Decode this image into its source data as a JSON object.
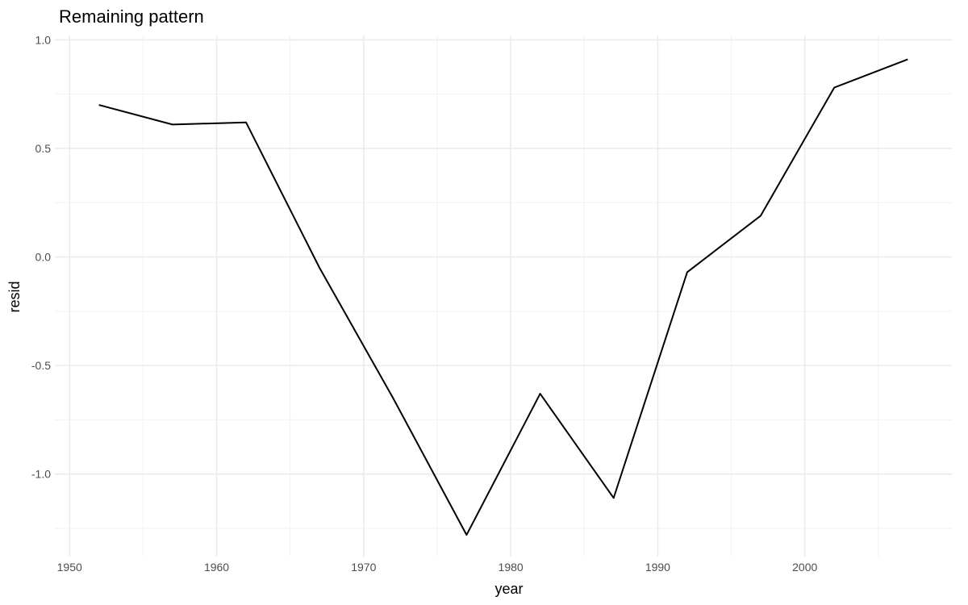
{
  "chart_data": {
    "type": "line",
    "title": "Remaining pattern",
    "xlabel": "year",
    "ylabel": "resid",
    "xlim": [
      1949,
      2010
    ],
    "ylim": [
      -1.38,
      1.02
    ],
    "x_ticks": [
      1950,
      1960,
      1970,
      1980,
      1990,
      2000
    ],
    "x_tick_labels": [
      "1950",
      "1960",
      "1970",
      "1980",
      "1990",
      "2000"
    ],
    "x_minor_ticks": [
      1955,
      1965,
      1975,
      1985,
      1995,
      2005
    ],
    "y_ticks": [
      -1.0,
      -0.5,
      0.0,
      0.5,
      1.0
    ],
    "y_tick_labels": [
      "-1.0",
      "-0.5",
      "0.0",
      "0.5",
      "1.0"
    ],
    "y_minor_ticks": [
      -1.25,
      -0.75,
      -0.25,
      0.25,
      0.75
    ],
    "grid": true,
    "line_color": "#000000",
    "x": [
      1952,
      1957,
      1962,
      1967,
      1972,
      1977,
      1982,
      1987,
      1992,
      1997,
      2002,
      2007
    ],
    "y": [
      0.7,
      0.61,
      0.62,
      -0.05,
      -0.65,
      -1.28,
      -0.63,
      -1.11,
      -0.07,
      0.19,
      0.78,
      0.91
    ]
  }
}
